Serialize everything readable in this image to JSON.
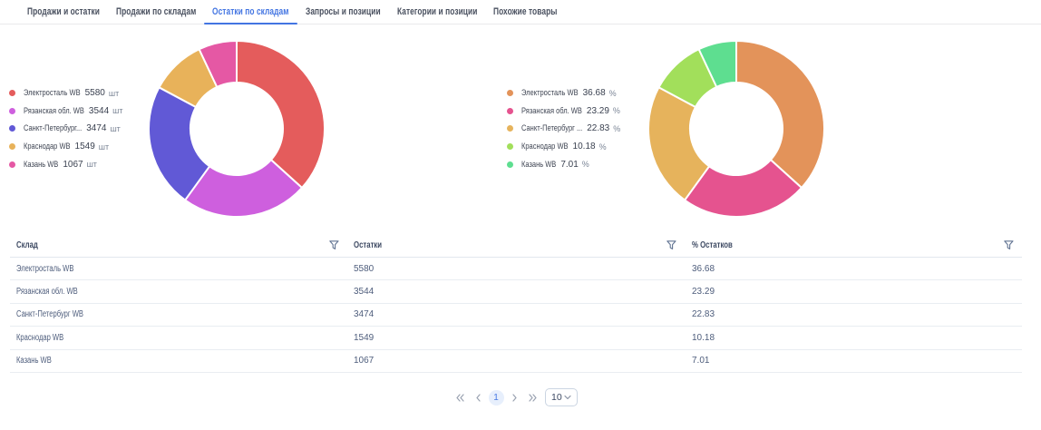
{
  "tabs": {
    "items": [
      {
        "label": "Продажи и остатки",
        "active": false
      },
      {
        "label": "Продажи по складам",
        "active": false
      },
      {
        "label": "Остатки по складам",
        "active": true
      },
      {
        "label": "Запросы и позиции",
        "active": false
      },
      {
        "label": "Категории и позиции",
        "active": false
      },
      {
        "label": "Похожие товары",
        "active": false
      }
    ]
  },
  "chart_data": [
    {
      "type": "pie",
      "variant": "donut",
      "title": "",
      "unit": "шт",
      "legend_position": "left",
      "labels": [
        "Электросталь WB",
        "Рязанская обл. WB",
        "Санкт-Петербург...",
        "Краснодар WB",
        "Казань WB"
      ],
      "values": [
        5580,
        3544,
        3474,
        1549,
        1067
      ],
      "display_values": [
        "5580",
        "3544",
        "3474",
        "1549",
        "1067"
      ],
      "colors": [
        "#e45c5c",
        "#ce5fde",
        "#6159d6",
        "#e8b25a",
        "#e558a4"
      ]
    },
    {
      "type": "pie",
      "variant": "donut",
      "title": "",
      "unit": "%",
      "legend_position": "left",
      "labels": [
        "Электросталь WB",
        "Рязанская обл. WB",
        "Санкт-Петербург ...",
        "Краснодар WB",
        "Казань WB"
      ],
      "values": [
        36.68,
        23.29,
        22.83,
        10.18,
        7.01
      ],
      "display_values": [
        "36.68",
        "23.29",
        "22.83",
        "10.18",
        "7.01"
      ],
      "colors": [
        "#e3935a",
        "#e5538f",
        "#e6b35c",
        "#a2df5b",
        "#5ede90"
      ]
    }
  ],
  "table": {
    "columns": [
      {
        "label": "Склад"
      },
      {
        "label": "Остатки"
      },
      {
        "label": "% Остатков"
      }
    ],
    "rows": [
      [
        "Электросталь WB",
        "5580",
        "36.68"
      ],
      [
        "Рязанская обл. WB",
        "3544",
        "23.29"
      ],
      [
        "Санкт-Петербург WB",
        "3474",
        "22.83"
      ],
      [
        "Краснодар WB",
        "1549",
        "10.18"
      ],
      [
        "Казань WB",
        "1067",
        "7.01"
      ]
    ]
  },
  "pagination": {
    "current_page": "1",
    "page_size": "10"
  },
  "colors": {
    "accent": "#4375e2",
    "filter_icon": "#617392",
    "arrow_icon": "#99a1b0"
  }
}
